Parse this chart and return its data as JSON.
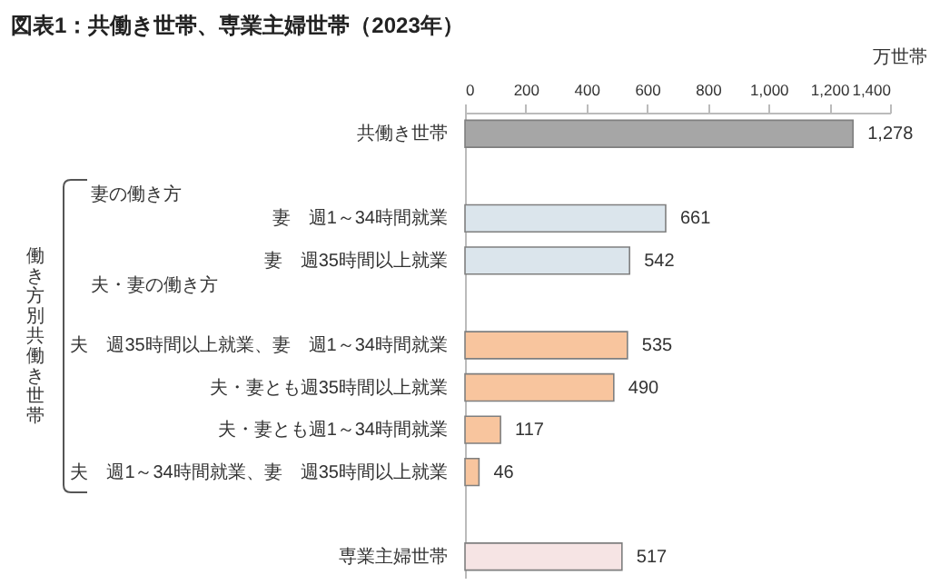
{
  "chart_data": {
    "type": "bar",
    "orientation": "horizontal",
    "title": "図表1：共働き世帯、専業主婦世帯（2023年）",
    "xlabel": "万世帯",
    "categories": [
      "共働き世帯",
      null,
      "妻　週1～34時間就業",
      "妻　週35時間以上就業",
      null,
      "夫　週35時間以上就業、妻　週1～34時間就業",
      "夫・妻とも週35時間以上就業",
      "夫・妻とも週1～34時間就業",
      "夫　週1～34時間就業、妻　週35時間以上就業",
      null,
      "専業主婦世帯"
    ],
    "values": [
      1278,
      null,
      661,
      542,
      null,
      535,
      490,
      117,
      46,
      null,
      517
    ],
    "value_labels": [
      "1,278",
      null,
      "661",
      "542",
      null,
      "535",
      "490",
      "117",
      "46",
      null,
      "517"
    ],
    "colors": [
      "#a6a6a6",
      null,
      "#dbe5ec",
      "#dbe5ec",
      null,
      "#f8c59e",
      "#f8c59e",
      "#f8c59e",
      "#f8c59e",
      null,
      "#f6e4e4"
    ],
    "xlim": [
      0,
      1400
    ],
    "xticks": [
      0,
      200,
      400,
      600,
      800,
      {
        "value": 1000,
        "label": "1,000"
      },
      {
        "value": 1200,
        "label": "1,200"
      },
      {
        "value": 1400,
        "label": "1,400"
      }
    ],
    "grid": false,
    "annotations": [
      "妻の働き方",
      "夫・妻の働き方",
      "働き方別共働き世帯"
    ]
  }
}
